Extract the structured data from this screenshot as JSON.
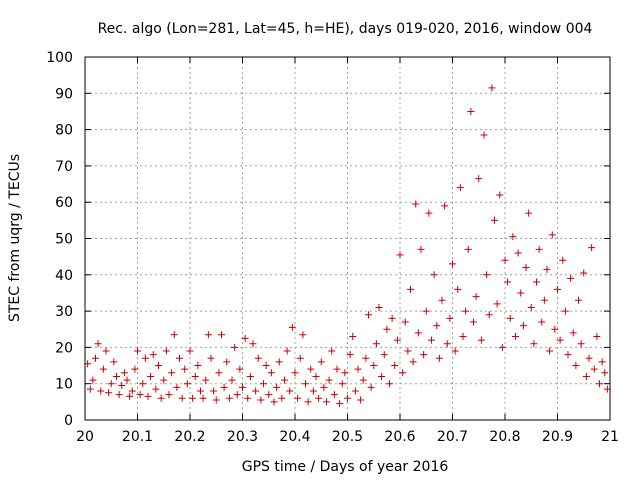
{
  "chart_data": {
    "type": "scatter",
    "title": "Rec. algo (Lon=281, Lat=45, h=HE), days 019-020, 2016, window 004",
    "xlabel": "GPS time / Days of year 2016",
    "ylabel": "STEC from uqrg / TECUs",
    "xlim": [
      20,
      21
    ],
    "ylim": [
      0,
      100
    ],
    "x_ticks": [
      20,
      20.1,
      20.2,
      20.3,
      20.4,
      20.5,
      20.6,
      20.7,
      20.8,
      20.9,
      21
    ],
    "x_tick_labels": [
      "20",
      "20.1",
      "20.2",
      "20.3",
      "20.4",
      "20.5",
      "20.6",
      "20.7",
      "20.8",
      "20.9",
      "21"
    ],
    "y_ticks": [
      0,
      10,
      20,
      30,
      40,
      50,
      60,
      70,
      80,
      90,
      100
    ],
    "y_tick_labels": [
      "0",
      "10",
      "20",
      "30",
      "40",
      "50",
      "60",
      "70",
      "80",
      "90",
      "100"
    ],
    "grid": true,
    "marker": "+",
    "color": "#cc0000",
    "series": [
      {
        "name": "STEC",
        "points": [
          [
            20.005,
            15.5
          ],
          [
            20.01,
            8.5
          ],
          [
            20.015,
            11
          ],
          [
            20.02,
            17
          ],
          [
            20.025,
            21
          ],
          [
            20.03,
            8
          ],
          [
            20.035,
            14
          ],
          [
            20.04,
            19
          ],
          [
            20.045,
            7.5
          ],
          [
            20.05,
            10
          ],
          [
            20.055,
            16
          ],
          [
            20.06,
            12
          ],
          [
            20.065,
            7
          ],
          [
            20.07,
            9.5
          ],
          [
            20.075,
            13
          ],
          [
            20.08,
            11
          ],
          [
            20.085,
            6.5
          ],
          [
            20.09,
            8
          ],
          [
            20.095,
            14
          ],
          [
            20.1,
            19
          ],
          [
            20.105,
            7
          ],
          [
            20.11,
            10
          ],
          [
            20.115,
            17
          ],
          [
            20.12,
            6.5
          ],
          [
            20.125,
            12
          ],
          [
            20.13,
            18
          ],
          [
            20.135,
            8.5
          ],
          [
            20.14,
            15
          ],
          [
            20.145,
            6
          ],
          [
            20.15,
            11
          ],
          [
            20.155,
            19
          ],
          [
            20.16,
            7
          ],
          [
            20.165,
            13
          ],
          [
            20.17,
            23.5
          ],
          [
            20.175,
            9
          ],
          [
            20.18,
            17
          ],
          [
            20.185,
            6
          ],
          [
            20.19,
            14
          ],
          [
            20.195,
            10
          ],
          [
            20.2,
            19
          ],
          [
            20.205,
            6
          ],
          [
            20.21,
            12
          ],
          [
            20.215,
            15
          ],
          [
            20.22,
            8
          ],
          [
            20.225,
            6
          ],
          [
            20.23,
            11
          ],
          [
            20.235,
            23.5
          ],
          [
            20.24,
            17
          ],
          [
            20.245,
            8
          ],
          [
            20.25,
            5.5
          ],
          [
            20.255,
            13
          ],
          [
            20.26,
            23.5
          ],
          [
            20.265,
            9
          ],
          [
            20.27,
            16
          ],
          [
            20.275,
            6
          ],
          [
            20.28,
            11
          ],
          [
            20.285,
            20
          ],
          [
            20.29,
            7
          ],
          [
            20.295,
            14
          ],
          [
            20.3,
            9
          ],
          [
            20.305,
            22.5
          ],
          [
            20.31,
            6
          ],
          [
            20.315,
            12
          ],
          [
            20.32,
            21
          ],
          [
            20.325,
            8
          ],
          [
            20.33,
            17
          ],
          [
            20.335,
            5.5
          ],
          [
            20.34,
            10
          ],
          [
            20.345,
            15
          ],
          [
            20.35,
            7
          ],
          [
            20.355,
            13
          ],
          [
            20.36,
            5
          ],
          [
            20.365,
            9
          ],
          [
            20.37,
            16
          ],
          [
            20.375,
            6
          ],
          [
            20.38,
            11
          ],
          [
            20.385,
            19
          ],
          [
            20.39,
            8
          ],
          [
            20.395,
            25.5
          ],
          [
            20.4,
            13
          ],
          [
            20.405,
            6
          ],
          [
            20.41,
            17
          ],
          [
            20.415,
            23.5
          ],
          [
            20.42,
            10
          ],
          [
            20.425,
            5
          ],
          [
            20.43,
            14
          ],
          [
            20.435,
            8
          ],
          [
            20.44,
            12
          ],
          [
            20.445,
            6
          ],
          [
            20.45,
            16
          ],
          [
            20.455,
            9
          ],
          [
            20.46,
            5
          ],
          [
            20.465,
            11
          ],
          [
            20.47,
            19
          ],
          [
            20.475,
            7
          ],
          [
            20.48,
            14
          ],
          [
            20.485,
            4.5
          ],
          [
            20.49,
            10
          ],
          [
            20.495,
            13
          ],
          [
            20.5,
            6
          ],
          [
            20.505,
            18
          ],
          [
            20.51,
            23
          ],
          [
            20.515,
            8
          ],
          [
            20.52,
            14
          ],
          [
            20.525,
            5.5
          ],
          [
            20.53,
            11
          ],
          [
            20.535,
            17
          ],
          [
            20.54,
            29
          ],
          [
            20.545,
            9
          ],
          [
            20.55,
            15
          ],
          [
            20.555,
            21
          ],
          [
            20.56,
            31
          ],
          [
            20.565,
            12
          ],
          [
            20.57,
            18
          ],
          [
            20.575,
            25
          ],
          [
            20.58,
            10
          ],
          [
            20.585,
            28
          ],
          [
            20.59,
            15
          ],
          [
            20.595,
            22
          ],
          [
            20.6,
            45.5
          ],
          [
            20.605,
            13
          ],
          [
            20.61,
            27
          ],
          [
            20.615,
            19
          ],
          [
            20.62,
            36
          ],
          [
            20.625,
            16
          ],
          [
            20.63,
            59.5
          ],
          [
            20.635,
            24
          ],
          [
            20.64,
            47
          ],
          [
            20.645,
            18
          ],
          [
            20.65,
            30
          ],
          [
            20.655,
            57
          ],
          [
            20.66,
            22
          ],
          [
            20.665,
            40
          ],
          [
            20.67,
            26
          ],
          [
            20.675,
            17
          ],
          [
            20.68,
            33
          ],
          [
            20.685,
            59
          ],
          [
            20.69,
            21
          ],
          [
            20.695,
            28
          ],
          [
            20.7,
            43
          ],
          [
            20.705,
            19
          ],
          [
            20.71,
            36
          ],
          [
            20.715,
            64
          ],
          [
            20.72,
            23
          ],
          [
            20.725,
            30
          ],
          [
            20.73,
            47
          ],
          [
            20.735,
            85
          ],
          [
            20.74,
            27
          ],
          [
            20.745,
            34
          ],
          [
            20.75,
            66.5
          ],
          [
            20.755,
            22
          ],
          [
            20.76,
            78.5
          ],
          [
            20.765,
            40
          ],
          [
            20.77,
            29
          ],
          [
            20.775,
            91.5
          ],
          [
            20.78,
            55
          ],
          [
            20.785,
            32
          ],
          [
            20.79,
            62
          ],
          [
            20.795,
            20
          ],
          [
            20.8,
            44
          ],
          [
            20.805,
            38
          ],
          [
            20.81,
            28
          ],
          [
            20.815,
            50.5
          ],
          [
            20.82,
            23
          ],
          [
            20.825,
            46
          ],
          [
            20.83,
            35
          ],
          [
            20.835,
            26
          ],
          [
            20.84,
            42
          ],
          [
            20.845,
            57
          ],
          [
            20.85,
            31
          ],
          [
            20.855,
            21
          ],
          [
            20.86,
            38
          ],
          [
            20.865,
            47
          ],
          [
            20.87,
            27
          ],
          [
            20.875,
            33
          ],
          [
            20.88,
            41.5
          ],
          [
            20.885,
            19
          ],
          [
            20.89,
            51
          ],
          [
            20.895,
            25
          ],
          [
            20.9,
            36
          ],
          [
            20.905,
            22
          ],
          [
            20.91,
            44
          ],
          [
            20.915,
            30
          ],
          [
            20.92,
            18
          ],
          [
            20.925,
            39
          ],
          [
            20.93,
            24
          ],
          [
            20.935,
            15
          ],
          [
            20.94,
            33
          ],
          [
            20.945,
            21
          ],
          [
            20.95,
            40.5
          ],
          [
            20.955,
            12
          ],
          [
            20.96,
            17
          ],
          [
            20.965,
            47.5
          ],
          [
            20.97,
            14
          ],
          [
            20.975,
            23
          ],
          [
            20.98,
            10
          ],
          [
            20.985,
            16
          ],
          [
            20.99,
            13
          ],
          [
            20.995,
            8.5
          ]
        ]
      }
    ]
  }
}
